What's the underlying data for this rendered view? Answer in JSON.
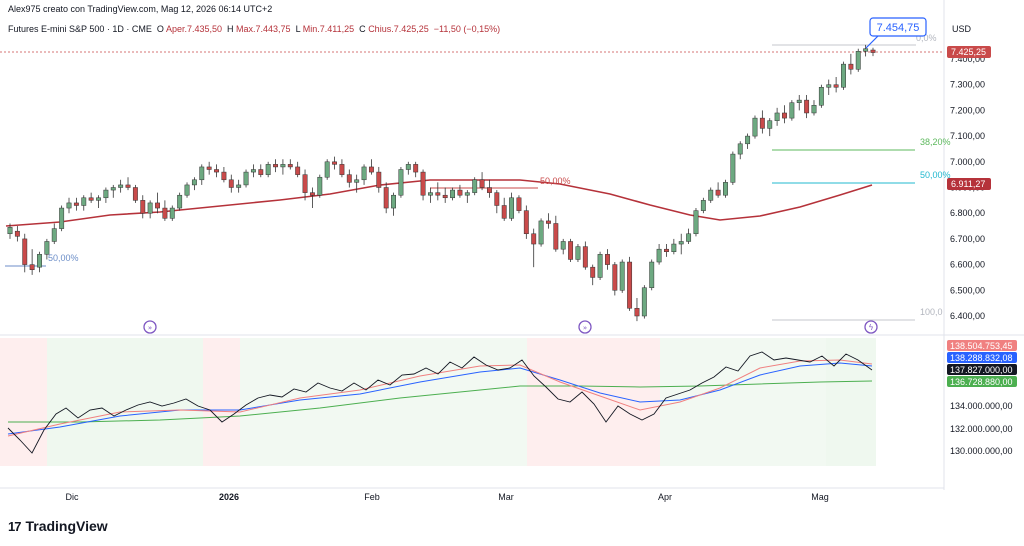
{
  "header": {
    "line1": "Alex975 creato con TradingView.com, Mag 12, 2026 06:14 UTC+2",
    "symbol": "Futures E-mini S&P 500 · 1D · CME",
    "open_label": "O",
    "open": "Aper.7.435,50",
    "high_label": "H",
    "high": "Max.7.443,75",
    "low_label": "L",
    "low": "Min.7.411,25",
    "close_label": "C",
    "close": "Chius.7.425,25",
    "change": "−11,50 (−0,15%)"
  },
  "price_axis": {
    "currency": "USD",
    "ticks": [
      "7.400,00",
      "7.300,00",
      "7.200,00",
      "7.100,00",
      "7.000,00",
      "6.900,00",
      "6.800,00",
      "6.700,00",
      "6.600,00",
      "6.500,00",
      "6.400,00"
    ]
  },
  "price_tags": {
    "current": "7.425,25",
    "ma": "6.911,27",
    "highlight": "7.454,75"
  },
  "fib_labels": {
    "f0": "0,0%",
    "f382": "38,20%",
    "f50": "50,00%",
    "f100": "100,0",
    "left_50": "50,00%",
    "mid_50": "50,00%"
  },
  "indicator_axis": {
    "ticks": [
      "134.000.000,00",
      "132.000.000,00",
      "130.000.000,00"
    ],
    "tag_red": "138.504.753,45",
    "tag_blue": "138.288.832,08",
    "tag_black": "137.827.000,00",
    "tag_green": "136.728.880,00"
  },
  "x_axis": {
    "labels": [
      "Dic",
      "2026",
      "Feb",
      "Mar",
      "Apr",
      "Mag"
    ]
  },
  "brand": {
    "logo_mark": "17",
    "name": "TradingView"
  },
  "colors": {
    "up": "#6da981",
    "down": "#c94a4a",
    "ma": "#b5323a",
    "fib382": "#5cb85c",
    "fib50": "#22b8cf",
    "accent": "#2962ff"
  },
  "chart_data": {
    "type": "candlestick",
    "candles_ohlc": [
      [
        6720,
        6760,
        6700,
        6745
      ],
      [
        6730,
        6750,
        6690,
        6710
      ],
      [
        6700,
        6720,
        6570,
        6600
      ],
      [
        6600,
        6660,
        6560,
        6580
      ],
      [
        6590,
        6650,
        6570,
        6640
      ],
      [
        6640,
        6700,
        6620,
        6690
      ],
      [
        6690,
        6760,
        6680,
        6740
      ],
      [
        6740,
        6830,
        6730,
        6820
      ],
      [
        6820,
        6860,
        6800,
        6840
      ],
      [
        6840,
        6860,
        6810,
        6830
      ],
      [
        6830,
        6870,
        6810,
        6860
      ],
      [
        6860,
        6880,
        6840,
        6850
      ],
      [
        6850,
        6870,
        6820,
        6860
      ],
      [
        6860,
        6900,
        6840,
        6890
      ],
      [
        6890,
        6910,
        6860,
        6900
      ],
      [
        6900,
        6930,
        6880,
        6910
      ],
      [
        6910,
        6940,
        6890,
        6900
      ],
      [
        6900,
        6910,
        6840,
        6850
      ],
      [
        6850,
        6870,
        6780,
        6800
      ],
      [
        6800,
        6850,
        6780,
        6840
      ],
      [
        6840,
        6880,
        6800,
        6820
      ],
      [
        6820,
        6850,
        6770,
        6780
      ],
      [
        6780,
        6830,
        6770,
        6820
      ],
      [
        6820,
        6880,
        6810,
        6870
      ],
      [
        6870,
        6920,
        6860,
        6910
      ],
      [
        6910,
        6940,
        6890,
        6930
      ],
      [
        6930,
        6990,
        6910,
        6980
      ],
      [
        6980,
        7000,
        6950,
        6970
      ],
      [
        6970,
        6990,
        6940,
        6960
      ],
      [
        6960,
        6980,
        6920,
        6930
      ],
      [
        6930,
        6950,
        6880,
        6900
      ],
      [
        6900,
        6930,
        6880,
        6910
      ],
      [
        6910,
        6970,
        6900,
        6960
      ],
      [
        6960,
        6990,
        6940,
        6970
      ],
      [
        6970,
        6990,
        6940,
        6950
      ],
      [
        6950,
        7000,
        6940,
        6990
      ],
      [
        6990,
        7010,
        6960,
        6980
      ],
      [
        6980,
        7010,
        6950,
        6990
      ],
      [
        6990,
        7010,
        6970,
        6980
      ],
      [
        6980,
        7000,
        6940,
        6950
      ],
      [
        6950,
        6970,
        6850,
        6880
      ],
      [
        6880,
        6900,
        6820,
        6870
      ],
      [
        6870,
        6950,
        6860,
        6940
      ],
      [
        6940,
        7010,
        6930,
        7000
      ],
      [
        7000,
        7020,
        6970,
        6990
      ],
      [
        6990,
        7010,
        6940,
        6950
      ],
      [
        6950,
        6970,
        6900,
        6920
      ],
      [
        6920,
        6950,
        6880,
        6930
      ],
      [
        6930,
        6990,
        6910,
        6980
      ],
      [
        6980,
        7010,
        6950,
        6960
      ],
      [
        6960,
        6980,
        6880,
        6900
      ],
      [
        6900,
        6920,
        6800,
        6820
      ],
      [
        6820,
        6880,
        6790,
        6870
      ],
      [
        6870,
        6980,
        6860,
        6970
      ],
      [
        6970,
        7000,
        6950,
        6990
      ],
      [
        6990,
        7000,
        6940,
        6960
      ],
      [
        6960,
        6970,
        6850,
        6870
      ],
      [
        6870,
        6900,
        6840,
        6880
      ],
      [
        6880,
        6920,
        6850,
        6870
      ],
      [
        6870,
        6900,
        6840,
        6860
      ],
      [
        6860,
        6900,
        6850,
        6890
      ],
      [
        6890,
        6910,
        6860,
        6870
      ],
      [
        6870,
        6890,
        6840,
        6880
      ],
      [
        6880,
        6940,
        6870,
        6930
      ],
      [
        6930,
        6960,
        6890,
        6900
      ],
      [
        6900,
        6930,
        6860,
        6880
      ],
      [
        6880,
        6890,
        6800,
        6830
      ],
      [
        6830,
        6860,
        6770,
        6780
      ],
      [
        6780,
        6880,
        6770,
        6860
      ],
      [
        6860,
        6870,
        6800,
        6810
      ],
      [
        6810,
        6830,
        6700,
        6720
      ],
      [
        6720,
        6740,
        6590,
        6680
      ],
      [
        6680,
        6780,
        6670,
        6770
      ],
      [
        6770,
        6800,
        6740,
        6760
      ],
      [
        6760,
        6790,
        6650,
        6660
      ],
      [
        6660,
        6700,
        6640,
        6690
      ],
      [
        6690,
        6700,
        6610,
        6620
      ],
      [
        6620,
        6680,
        6610,
        6670
      ],
      [
        6670,
        6690,
        6580,
        6590
      ],
      [
        6590,
        6600,
        6520,
        6550
      ],
      [
        6550,
        6650,
        6540,
        6640
      ],
      [
        6640,
        6660,
        6580,
        6600
      ],
      [
        6600,
        6610,
        6480,
        6500
      ],
      [
        6500,
        6620,
        6490,
        6610
      ],
      [
        6610,
        6630,
        6420,
        6430
      ],
      [
        6430,
        6470,
        6380,
        6400
      ],
      [
        6400,
        6520,
        6390,
        6510
      ],
      [
        6510,
        6620,
        6500,
        6610
      ],
      [
        6610,
        6680,
        6600,
        6660
      ],
      [
        6660,
        6680,
        6630,
        6650
      ],
      [
        6650,
        6700,
        6640,
        6680
      ],
      [
        6680,
        6720,
        6640,
        6690
      ],
      [
        6690,
        6740,
        6680,
        6720
      ],
      [
        6720,
        6820,
        6710,
        6810
      ],
      [
        6810,
        6860,
        6800,
        6850
      ],
      [
        6850,
        6900,
        6840,
        6890
      ],
      [
        6890,
        6920,
        6860,
        6870
      ],
      [
        6870,
        6930,
        6860,
        6920
      ],
      [
        6920,
        7040,
        6910,
        7030
      ],
      [
        7030,
        7080,
        7010,
        7070
      ],
      [
        7070,
        7110,
        7050,
        7100
      ],
      [
        7100,
        7180,
        7090,
        7170
      ],
      [
        7170,
        7200,
        7110,
        7130
      ],
      [
        7130,
        7170,
        7100,
        7160
      ],
      [
        7160,
        7210,
        7140,
        7190
      ],
      [
        7190,
        7220,
        7150,
        7170
      ],
      [
        7170,
        7240,
        7160,
        7230
      ],
      [
        7230,
        7260,
        7200,
        7240
      ],
      [
        7240,
        7260,
        7170,
        7190
      ],
      [
        7190,
        7240,
        7180,
        7220
      ],
      [
        7220,
        7300,
        7210,
        7290
      ],
      [
        7290,
        7320,
        7260,
        7300
      ],
      [
        7300,
        7330,
        7270,
        7290
      ],
      [
        7290,
        7390,
        7280,
        7380
      ],
      [
        7380,
        7420,
        7340,
        7360
      ],
      [
        7360,
        7440,
        7350,
        7430
      ],
      [
        7430,
        7455,
        7410,
        7440
      ],
      [
        7435,
        7444,
        7411,
        7425
      ]
    ],
    "ma": {
      "start": 6730,
      "end": 6911
    },
    "ylim": [
      6350,
      7480
    ],
    "price_axis_ticks": [
      7400,
      7300,
      7200,
      7100,
      7000,
      6900,
      6800,
      6700,
      6600,
      6500,
      6400
    ],
    "fib_levels": {
      "0,0%": 7454.75,
      "38,20%": 7035,
      "50,00%": 6905,
      "100,0": 6385
    },
    "indicator_ylim": [
      129000000,
      139500000
    ]
  }
}
